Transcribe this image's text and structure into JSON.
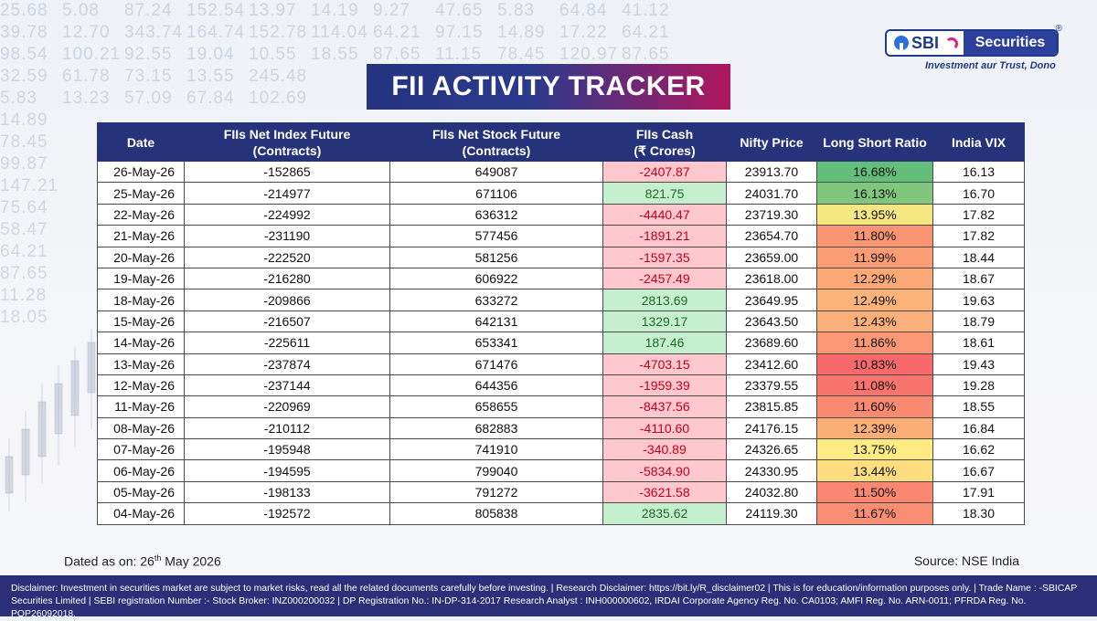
{
  "background_numbers": [
    [
      "25.68",
      "5.08",
      "87.24",
      "152.54",
      "13.97",
      "14.19",
      "9.27",
      "47.65",
      "5.83",
      "64.84",
      "41.12"
    ],
    [
      "39.78",
      "12.70",
      "343.74",
      "164.74",
      "152.78",
      "114.04",
      "64.21",
      "97.15",
      "14.89",
      "17.22",
      "64.21"
    ],
    [
      "98.54",
      "100.21",
      "92.55",
      "19.04",
      "10.55",
      "18.55",
      "87.65",
      "11.15",
      "78.45",
      "120.97",
      "87.65"
    ],
    [
      "32.59",
      "61.78",
      "73.15",
      "13.55",
      "245.48",
      "",
      "",
      "",
      "",
      "",
      ""
    ],
    [
      "5.83",
      "13.23",
      "57.09",
      "67.84",
      "102.69",
      "",
      "",
      "",
      "",
      "",
      ""
    ],
    [
      "14.89",
      "",
      "",
      "",
      "",
      "",
      "",
      "",
      "",
      "",
      ""
    ],
    [
      "78.45",
      "",
      "",
      "",
      "",
      "",
      "",
      "",
      "",
      "",
      ""
    ],
    [
      "99.87",
      "",
      "",
      "",
      "",
      "",
      "",
      "",
      "",
      "",
      ""
    ],
    [
      "147.21",
      "",
      "",
      "",
      "",
      "",
      "",
      "",
      "",
      "",
      ""
    ],
    [
      "75.64",
      "",
      "",
      "",
      "",
      "",
      "",
      "",
      "",
      "",
      ""
    ],
    [
      "58.47",
      "",
      "",
      "",
      "",
      "",
      "",
      "",
      "",
      "",
      ""
    ],
    [
      "64.21",
      "",
      "",
      "",
      "",
      "",
      "",
      "",
      "",
      "",
      ""
    ],
    [
      "87.65",
      "",
      "",
      "",
      "",
      "",
      "",
      "",
      "",
      "",
      ""
    ],
    [
      "11.28",
      "",
      "",
      "",
      "",
      "",
      "",
      "",
      "",
      "",
      ""
    ],
    [
      "18.05",
      "",
      "",
      "",
      "",
      "",
      "",
      "",
      "",
      "",
      ""
    ]
  ],
  "logo": {
    "brand": "SBI",
    "product": "Securities",
    "registered": "®",
    "tagline": "Investment aur Trust, Dono",
    "colors": {
      "navy": "#2b3f9b",
      "magenta": "#e31e79"
    }
  },
  "title": "FII ACTIVITY TRACKER",
  "table": {
    "headers": [
      [
        "Date"
      ],
      [
        "FIIs Net Index Future",
        "(Contracts)"
      ],
      [
        "FIIs Net Stock Future",
        "(Contracts)"
      ],
      [
        "FIIs Cash",
        "(₹ Crores)"
      ],
      [
        "Nifty Price"
      ],
      [
        "Long Short Ratio"
      ],
      [
        "India VIX"
      ]
    ],
    "rows": [
      {
        "date": "26-May-26",
        "index_future": "-152865",
        "stock_future": "649087",
        "cash": "-2407.87",
        "nifty": "23913.70",
        "ls_ratio": "16.68%",
        "vix": "16.13"
      },
      {
        "date": "25-May-26",
        "index_future": "-214977",
        "stock_future": "671106",
        "cash": "821.75",
        "nifty": "24031.70",
        "ls_ratio": "16.13%",
        "vix": "16.70"
      },
      {
        "date": "22-May-26",
        "index_future": "-224992",
        "stock_future": "636312",
        "cash": "-4440.47",
        "nifty": "23719.30",
        "ls_ratio": "13.95%",
        "vix": "17.82"
      },
      {
        "date": "21-May-26",
        "index_future": "-231190",
        "stock_future": "577456",
        "cash": "-1891.21",
        "nifty": "23654.70",
        "ls_ratio": "11.80%",
        "vix": "17.82"
      },
      {
        "date": "20-May-26",
        "index_future": "-222520",
        "stock_future": "581256",
        "cash": "-1597.35",
        "nifty": "23659.00",
        "ls_ratio": "11.99%",
        "vix": "18.44"
      },
      {
        "date": "19-May-26",
        "index_future": "-216280",
        "stock_future": "606922",
        "cash": "-2457.49",
        "nifty": "23618.00",
        "ls_ratio": "12.29%",
        "vix": "18.67"
      },
      {
        "date": "18-May-26",
        "index_future": "-209866",
        "stock_future": "633272",
        "cash": "2813.69",
        "nifty": "23649.95",
        "ls_ratio": "12.49%",
        "vix": "19.63"
      },
      {
        "date": "15-May-26",
        "index_future": "-216507",
        "stock_future": "642131",
        "cash": "1329.17",
        "nifty": "23643.50",
        "ls_ratio": "12.43%",
        "vix": "18.79"
      },
      {
        "date": "14-May-26",
        "index_future": "-225611",
        "stock_future": "653341",
        "cash": "187.46",
        "nifty": "23689.60",
        "ls_ratio": "11.86%",
        "vix": "18.61"
      },
      {
        "date": "13-May-26",
        "index_future": "-237874",
        "stock_future": "671476",
        "cash": "-4703.15",
        "nifty": "23412.60",
        "ls_ratio": "10.83%",
        "vix": "19.43"
      },
      {
        "date": "12-May-26",
        "index_future": "-237144",
        "stock_future": "644356",
        "cash": "-1959.39",
        "nifty": "23379.55",
        "ls_ratio": "11.08%",
        "vix": "19.28"
      },
      {
        "date": "11-May-26",
        "index_future": "-220969",
        "stock_future": "658655",
        "cash": "-8437.56",
        "nifty": "23815.85",
        "ls_ratio": "11.60%",
        "vix": "18.55"
      },
      {
        "date": "08-May-26",
        "index_future": "-210112",
        "stock_future": "682883",
        "cash": "-4110.60",
        "nifty": "24176.15",
        "ls_ratio": "12.39%",
        "vix": "16.84"
      },
      {
        "date": "07-May-26",
        "index_future": "-195948",
        "stock_future": "741910",
        "cash": "-340.89",
        "nifty": "24326.65",
        "ls_ratio": "13.75%",
        "vix": "16.62"
      },
      {
        "date": "06-May-26",
        "index_future": "-194595",
        "stock_future": "799040",
        "cash": "-5834.90",
        "nifty": "24330.95",
        "ls_ratio": "13.44%",
        "vix": "16.67"
      },
      {
        "date": "05-May-26",
        "index_future": "-198133",
        "stock_future": "791272",
        "cash": "-3621.58",
        "nifty": "24032.80",
        "ls_ratio": "11.50%",
        "vix": "17.91"
      },
      {
        "date": "04-May-26",
        "index_future": "-192572",
        "stock_future": "805838",
        "cash": "2835.62",
        "nifty": "24119.30",
        "ls_ratio": "11.67%",
        "vix": "18.30"
      }
    ],
    "colors": {
      "header_bg": "#26337a",
      "cash_negative_bg": "#ffc7ce",
      "cash_negative_text": "#c0001a",
      "cash_positive_bg": "#c6efce",
      "cash_positive_text": "#1f6b2a",
      "ratio_scale_low": "#f8696b",
      "ratio_scale_mid": "#ffeb84",
      "ratio_scale_high": "#63be7b"
    }
  },
  "footer": {
    "dated_prefix": "Dated as on: 26",
    "dated_sup": "th",
    "dated_suffix": " May 2026",
    "source": "Source: NSE India"
  },
  "disclaimer": "Disclaimer: Investment in securities market are subject to market risks, read all the related documents carefully before investing.  | Research Disclaimer: https://bit.ly/R_disclaimer02 | This is for education/information purposes only. | Trade Name : -SBICAP Securities Limited | SEBI registration Number :- Stock Broker: INZ000200032 | DP Registration No.: IN-DP-314-2017 Research Analyst : INH000000602, IRDAI Corporate Agency Reg. No. CA0103; AMFI Reg. No. ARN-0011; PFRDA Reg. No. POP26092018."
}
